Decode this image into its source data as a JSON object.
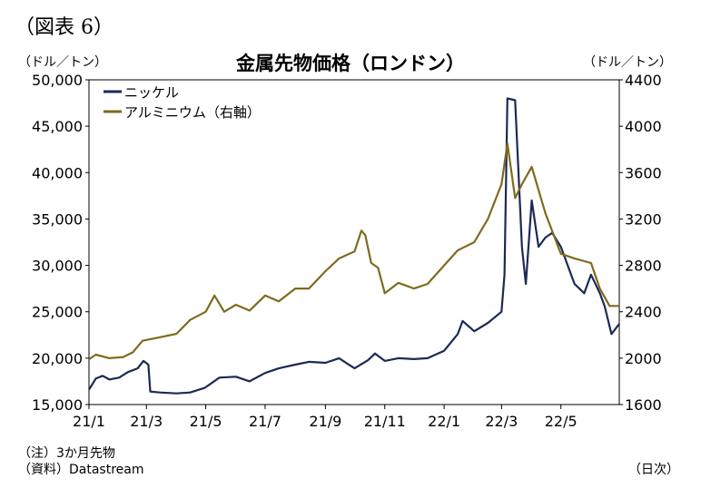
{
  "figure_label": "（図表 6）",
  "chart_data": {
    "type": "line",
    "title": "金属先物価格（ロンドン）",
    "left_unit": "（ドル／トン）",
    "right_unit": "（ドル／トン）",
    "x_unit": "（日次）",
    "x_ticks": [
      "21/1",
      "21/3",
      "21/5",
      "21/7",
      "21/9",
      "21/11",
      "22/1",
      "22/3",
      "22/5"
    ],
    "x_range": [
      "2021-01-01",
      "2022-06-30"
    ],
    "y_left": {
      "range": [
        15000,
        50000
      ],
      "ticks": [
        "15,000",
        "20,000",
        "25,000",
        "30,000",
        "35,000",
        "40,000",
        "45,000",
        "50,000"
      ]
    },
    "y_right": {
      "range": [
        1600,
        4400
      ],
      "ticks": [
        "1600",
        "2000",
        "2400",
        "2800",
        "3200",
        "3600",
        "4000",
        "4400"
      ]
    },
    "legend_position": "top-left",
    "series": [
      {
        "name": "ニッケル",
        "axis": "left",
        "color": "#1b2a55",
        "points": [
          [
            "2021-01-01",
            16600
          ],
          [
            "2021-01-08",
            17800
          ],
          [
            "2021-01-15",
            18100
          ],
          [
            "2021-01-22",
            17700
          ],
          [
            "2021-02-01",
            17900
          ],
          [
            "2021-02-10",
            18500
          ],
          [
            "2021-02-20",
            18900
          ],
          [
            "2021-02-26",
            19700
          ],
          [
            "2021-03-03",
            19300
          ],
          [
            "2021-03-05",
            16400
          ],
          [
            "2021-03-15",
            16300
          ],
          [
            "2021-04-01",
            16200
          ],
          [
            "2021-04-15",
            16300
          ],
          [
            "2021-04-30",
            16800
          ],
          [
            "2021-05-15",
            17900
          ],
          [
            "2021-06-01",
            18000
          ],
          [
            "2021-06-15",
            17500
          ],
          [
            "2021-07-01",
            18400
          ],
          [
            "2021-07-15",
            18900
          ],
          [
            "2021-08-01",
            19300
          ],
          [
            "2021-08-15",
            19600
          ],
          [
            "2021-09-01",
            19500
          ],
          [
            "2021-09-15",
            20000
          ],
          [
            "2021-10-01",
            18900
          ],
          [
            "2021-10-15",
            19800
          ],
          [
            "2021-10-22",
            20500
          ],
          [
            "2021-11-01",
            19700
          ],
          [
            "2021-11-15",
            20000
          ],
          [
            "2021-12-01",
            19900
          ],
          [
            "2021-12-15",
            20000
          ],
          [
            "2022-01-01",
            20800
          ],
          [
            "2022-01-15",
            22600
          ],
          [
            "2022-01-20",
            24000
          ],
          [
            "2022-02-01",
            22900
          ],
          [
            "2022-02-15",
            23800
          ],
          [
            "2022-03-01",
            25000
          ],
          [
            "2022-03-04",
            29000
          ],
          [
            "2022-03-07",
            48000
          ],
          [
            "2022-03-15",
            47800
          ],
          [
            "2022-03-22",
            32000
          ],
          [
            "2022-03-26",
            28000
          ],
          [
            "2022-04-01",
            37000
          ],
          [
            "2022-04-08",
            32000
          ],
          [
            "2022-04-15",
            33000
          ],
          [
            "2022-04-22",
            33500
          ],
          [
            "2022-05-01",
            32000
          ],
          [
            "2022-05-15",
            28000
          ],
          [
            "2022-05-25",
            27000
          ],
          [
            "2022-06-01",
            29000
          ],
          [
            "2022-06-10",
            27000
          ],
          [
            "2022-06-15",
            25600
          ],
          [
            "2022-06-22",
            22600
          ],
          [
            "2022-06-30",
            23700
          ]
        ]
      },
      {
        "name": "アルミニウム（右軸）",
        "axis": "right",
        "color": "#7f6a1e",
        "points": [
          [
            "2021-01-01",
            1990
          ],
          [
            "2021-01-08",
            2030
          ],
          [
            "2021-01-22",
            2000
          ],
          [
            "2021-02-05",
            2010
          ],
          [
            "2021-02-15",
            2050
          ],
          [
            "2021-02-25",
            2150
          ],
          [
            "2021-03-15",
            2180
          ],
          [
            "2021-04-01",
            2210
          ],
          [
            "2021-04-15",
            2330
          ],
          [
            "2021-05-01",
            2400
          ],
          [
            "2021-05-10",
            2540
          ],
          [
            "2021-05-20",
            2400
          ],
          [
            "2021-06-01",
            2460
          ],
          [
            "2021-06-15",
            2410
          ],
          [
            "2021-07-01",
            2540
          ],
          [
            "2021-07-15",
            2490
          ],
          [
            "2021-08-01",
            2600
          ],
          [
            "2021-08-15",
            2600
          ],
          [
            "2021-09-01",
            2750
          ],
          [
            "2021-09-15",
            2860
          ],
          [
            "2021-10-01",
            2920
          ],
          [
            "2021-10-08",
            3100
          ],
          [
            "2021-10-12",
            3060
          ],
          [
            "2021-10-18",
            2820
          ],
          [
            "2021-10-25",
            2780
          ],
          [
            "2021-11-01",
            2560
          ],
          [
            "2021-11-15",
            2650
          ],
          [
            "2021-12-01",
            2600
          ],
          [
            "2021-12-15",
            2640
          ],
          [
            "2022-01-01",
            2800
          ],
          [
            "2022-01-15",
            2930
          ],
          [
            "2022-02-01",
            3000
          ],
          [
            "2022-02-15",
            3200
          ],
          [
            "2022-03-01",
            3500
          ],
          [
            "2022-03-07",
            3850
          ],
          [
            "2022-03-15",
            3380
          ],
          [
            "2022-03-22",
            3500
          ],
          [
            "2022-04-01",
            3650
          ],
          [
            "2022-04-15",
            3250
          ],
          [
            "2022-05-01",
            2900
          ],
          [
            "2022-05-15",
            2860
          ],
          [
            "2022-06-01",
            2820
          ],
          [
            "2022-06-10",
            2600
          ],
          [
            "2022-06-20",
            2450
          ],
          [
            "2022-06-30",
            2450
          ]
        ]
      }
    ]
  },
  "notes": {
    "line1": "（注）3か月先物",
    "line2": "（資料）Datastream"
  }
}
